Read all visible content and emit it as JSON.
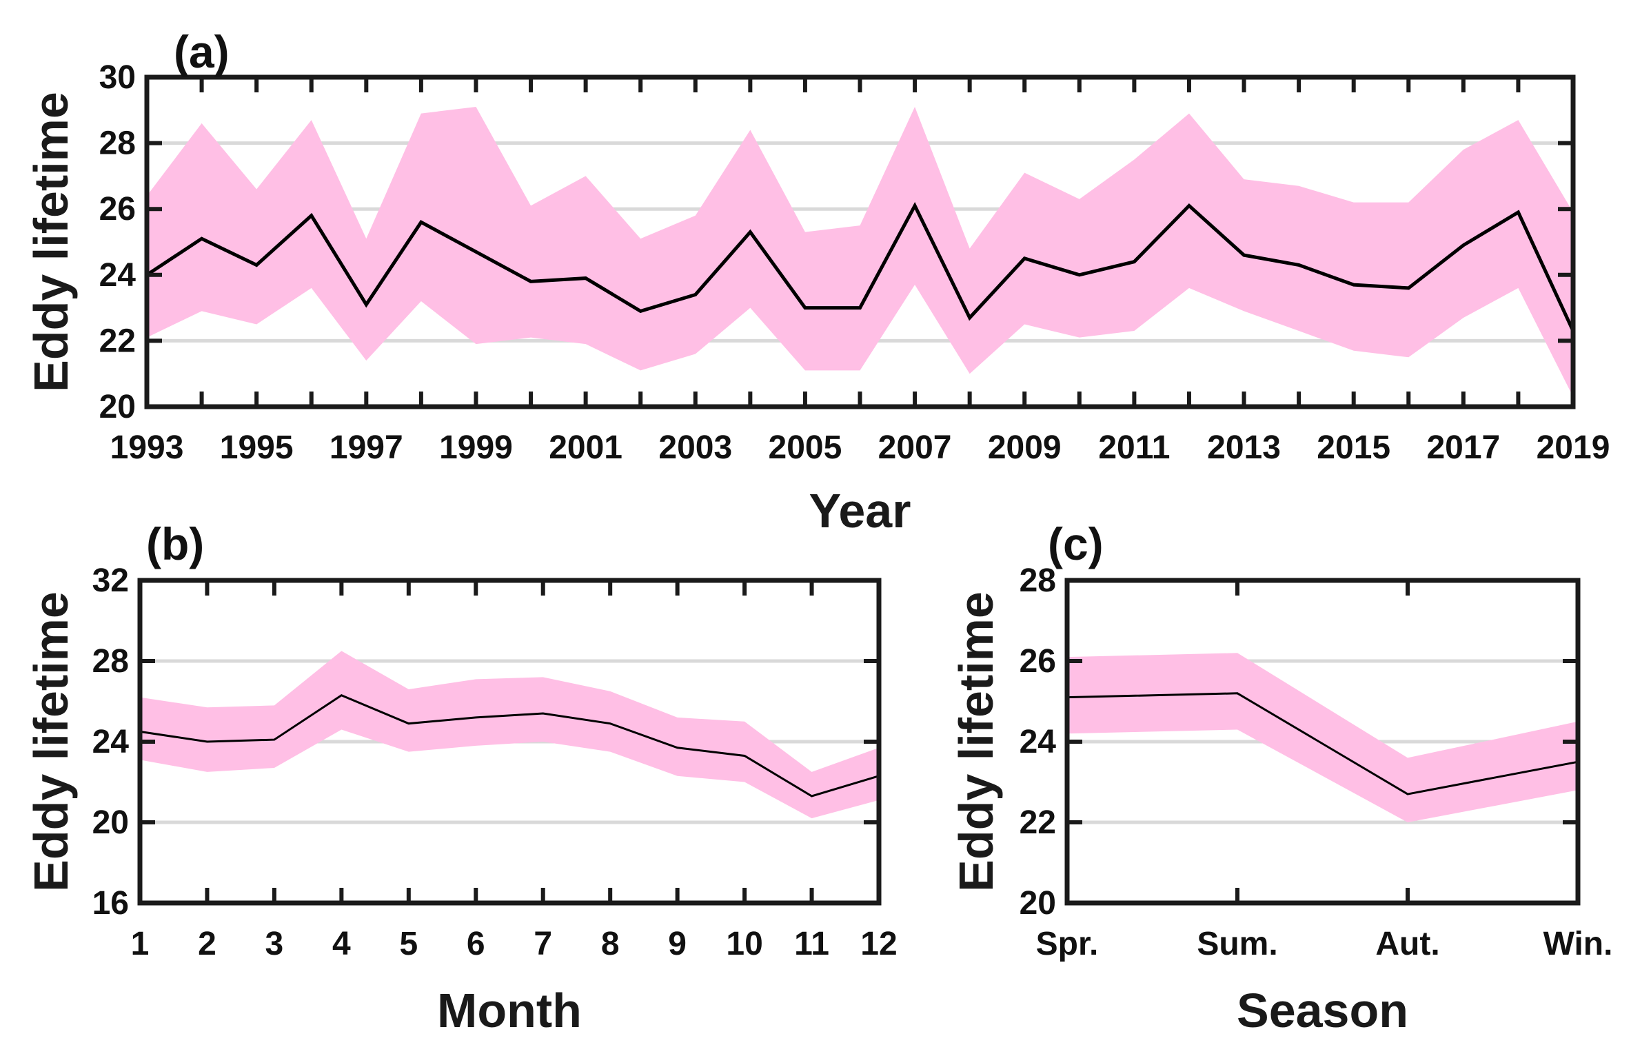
{
  "colors": {
    "band": "#ffbfe5",
    "line": "#000000",
    "grid": "#d9d9d9",
    "frame": "#1a1a1a"
  },
  "chart_data": [
    {
      "id": "a",
      "type": "line",
      "panel_label": "(a)",
      "xlabel": "Year",
      "ylabel": "Eddy lifetime",
      "ylim": [
        20,
        30
      ],
      "yticks": [
        20,
        22,
        24,
        26,
        28,
        30
      ],
      "grid": true,
      "x": [
        1993,
        1994,
        1995,
        1996,
        1997,
        1998,
        1999,
        2000,
        2001,
        2002,
        2003,
        2004,
        2005,
        2006,
        2007,
        2008,
        2009,
        2010,
        2011,
        2012,
        2013,
        2014,
        2015,
        2016,
        2017,
        2018,
        2019
      ],
      "xtick_labels": [
        "1993",
        "1995",
        "1997",
        "1999",
        "2001",
        "2003",
        "2005",
        "2007",
        "2009",
        "2011",
        "2013",
        "2015",
        "2017",
        "2019"
      ],
      "series": [
        {
          "name": "mean",
          "values": [
            24.0,
            25.1,
            24.3,
            25.8,
            23.1,
            25.6,
            24.7,
            23.8,
            23.9,
            22.9,
            23.4,
            25.3,
            23.0,
            23.0,
            26.1,
            22.7,
            24.5,
            24.0,
            24.4,
            26.1,
            24.6,
            24.3,
            23.7,
            23.6,
            24.9,
            25.9,
            22.3
          ]
        },
        {
          "name": "upper",
          "values": [
            26.4,
            28.6,
            26.6,
            28.7,
            25.1,
            28.9,
            29.1,
            26.1,
            27.0,
            25.1,
            25.8,
            28.4,
            25.3,
            25.5,
            29.1,
            24.8,
            27.1,
            26.3,
            27.5,
            28.9,
            26.9,
            26.7,
            26.2,
            26.2,
            27.8,
            28.7,
            25.9
          ]
        },
        {
          "name": "lower",
          "values": [
            22.1,
            22.9,
            22.5,
            23.6,
            21.4,
            23.2,
            21.9,
            22.1,
            21.9,
            21.1,
            21.6,
            23.0,
            21.1,
            21.1,
            23.7,
            21.0,
            22.5,
            22.1,
            22.3,
            23.6,
            22.9,
            22.3,
            21.7,
            21.5,
            22.7,
            23.6,
            20.3
          ]
        }
      ]
    },
    {
      "id": "b",
      "type": "line",
      "panel_label": "(b)",
      "xlabel": "Month",
      "ylabel": "Eddy lifetime",
      "ylim": [
        16,
        32
      ],
      "yticks": [
        16,
        20,
        24,
        28,
        32
      ],
      "grid": true,
      "x": [
        1,
        2,
        3,
        4,
        5,
        6,
        7,
        8,
        9,
        10,
        11,
        12
      ],
      "xtick_labels": [
        "1",
        "2",
        "3",
        "4",
        "5",
        "6",
        "7",
        "8",
        "9",
        "10",
        "11",
        "12"
      ],
      "series": [
        {
          "name": "mean",
          "values": [
            24.5,
            24.0,
            24.1,
            26.3,
            24.9,
            25.2,
            25.4,
            24.9,
            23.7,
            23.3,
            21.3,
            22.3
          ]
        },
        {
          "name": "upper",
          "values": [
            26.2,
            25.7,
            25.8,
            28.5,
            26.6,
            27.1,
            27.2,
            26.5,
            25.2,
            25.0,
            22.5,
            23.7
          ]
        },
        {
          "name": "lower",
          "values": [
            23.1,
            22.5,
            22.7,
            24.6,
            23.5,
            23.8,
            24.0,
            23.5,
            22.3,
            22.0,
            20.2,
            21.1
          ]
        }
      ]
    },
    {
      "id": "c",
      "type": "line",
      "panel_label": "(c)",
      "xlabel": "Season",
      "ylabel": "Eddy lifetime",
      "ylim": [
        20,
        28
      ],
      "yticks": [
        20,
        22,
        24,
        26,
        28
      ],
      "grid": true,
      "x": [
        1,
        2,
        3,
        4
      ],
      "xtick_labels": [
        "Spr.",
        "Sum.",
        "Aut.",
        "Win."
      ],
      "series": [
        {
          "name": "mean",
          "values": [
            25.1,
            25.2,
            22.7,
            23.5
          ]
        },
        {
          "name": "upper",
          "values": [
            26.1,
            26.2,
            23.6,
            24.5
          ]
        },
        {
          "name": "lower",
          "values": [
            24.2,
            24.3,
            22.0,
            22.8
          ]
        }
      ]
    }
  ]
}
